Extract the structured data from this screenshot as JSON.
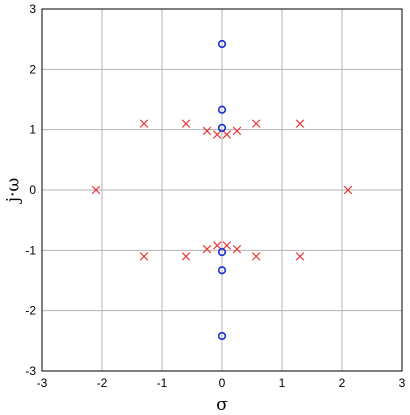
{
  "chart_data": {
    "type": "scatter",
    "title": "",
    "xlabel": "σ",
    "ylabel": "j·ω",
    "xlim": [
      -3,
      3
    ],
    "ylim": [
      -3,
      3
    ],
    "xticks": [
      "-3",
      "-2",
      "-1",
      "0",
      "1",
      "2",
      "3"
    ],
    "yticks": [
      "3",
      "2",
      "1",
      "0",
      "-1",
      "-2",
      "-3"
    ],
    "grid": true,
    "legend": "none",
    "series": [
      {
        "marker": "x",
        "color": "#e8393b",
        "points": [
          [
            -2.1,
            0
          ],
          [
            2.1,
            0
          ],
          [
            -1.3,
            1.1
          ],
          [
            -0.6,
            1.1
          ],
          [
            0.57,
            1.1
          ],
          [
            1.3,
            1.1
          ],
          [
            -1.3,
            -1.1
          ],
          [
            -0.6,
            -1.1
          ],
          [
            0.57,
            -1.1
          ],
          [
            1.3,
            -1.1
          ],
          [
            -0.25,
            0.98
          ],
          [
            0.25,
            0.98
          ],
          [
            -0.08,
            0.92
          ],
          [
            0.08,
            0.92
          ],
          [
            -0.25,
            -0.98
          ],
          [
            0.25,
            -0.98
          ],
          [
            -0.08,
            -0.92
          ],
          [
            0.08,
            -0.92
          ]
        ]
      },
      {
        "marker": "o",
        "color": "#1a2fd0",
        "points": [
          [
            0,
            2.42
          ],
          [
            0,
            1.33
          ],
          [
            0,
            1.03
          ],
          [
            0,
            -1.03
          ],
          [
            0,
            -1.33
          ],
          [
            0,
            -2.42
          ]
        ]
      }
    ]
  }
}
